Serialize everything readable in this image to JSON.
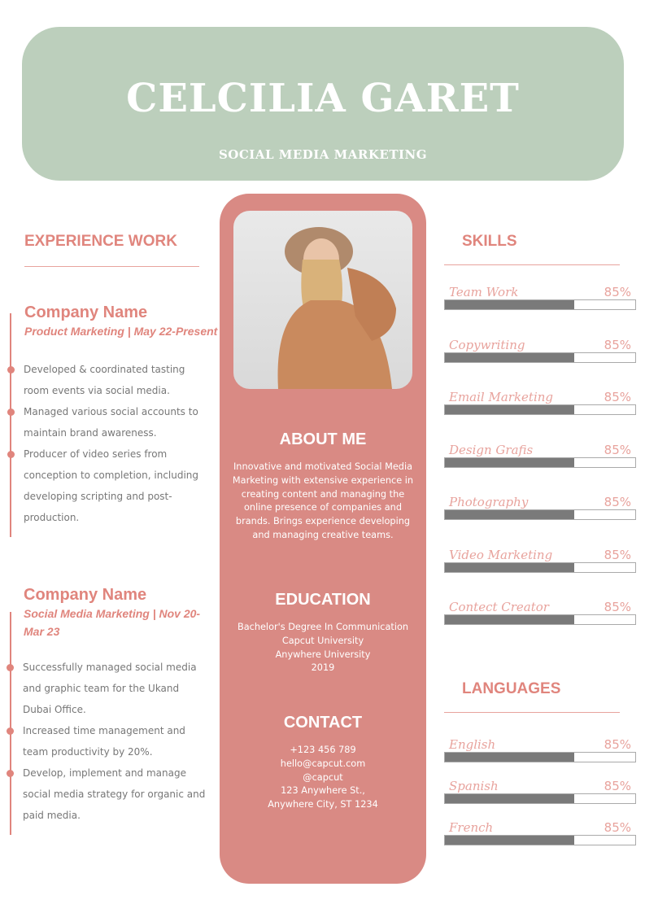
{
  "header": {
    "name": "CELCILIA GARET",
    "role": "SOCIAL MEDIA MARKETING"
  },
  "colors": {
    "header_bg": "#bccfbc",
    "accent": "#e0857d",
    "center_bg": "#d98a84",
    "bar_fill": "#7a7a7a"
  },
  "experience": {
    "title": "EXPERIENCE WORK",
    "jobs": [
      {
        "company": "Company Name",
        "title": "Product Marketing | May 22-Present",
        "bullets": [
          "Developed & coordinated tasting room events via social media.",
          "Managed various social accounts to maintain brand awareness.",
          "Producer of video series from conception to completion, including developing scripting and post-production."
        ]
      },
      {
        "company": "Company Name",
        "title": "Social Media Marketing | Nov 20-Mar 23",
        "bullets": [
          "Successfully managed social media and graphic team for the Ukand Dubai Office.",
          "Increased time management and team productivity by 20%.",
          "Develop, implement and manage social media strategy for organic and paid media."
        ]
      }
    ]
  },
  "center": {
    "photo": "portrait-photo",
    "about": {
      "title": "ABOUT ME",
      "text": "Innovative and motivated Social Media Marketing with extensive experience in creating content and managing the online presence of companies and brands. Brings experience developing and managing creative teams."
    },
    "education": {
      "title": "EDUCATION",
      "lines": [
        "Bachelor's Degree In Communication",
        "Capcut University",
        "Anywhere University",
        "2019"
      ]
    },
    "contact": {
      "title": "CONTACT",
      "lines": [
        "+123  456 789",
        "hello@capcut.com",
        "@capcut",
        "123 Anywhere St.,",
        "Anywhere City, ST 1234"
      ]
    }
  },
  "skills": {
    "title": "SKILLS",
    "items": [
      {
        "label": "Team Work",
        "value": "85%",
        "fill": 68
      },
      {
        "label": "Copywriting",
        "value": "85%",
        "fill": 68
      },
      {
        "label": "Email Marketing",
        "value": "85%",
        "fill": 68
      },
      {
        "label": "Design Grafis",
        "value": "85%",
        "fill": 68
      },
      {
        "label": "Photography",
        "value": "85%",
        "fill": 68
      },
      {
        "label": "Video Marketing",
        "value": "85%",
        "fill": 68
      },
      {
        "label": "Contect Creator",
        "value": "85%",
        "fill": 68
      }
    ]
  },
  "languages": {
    "title": "LANGUAGES",
    "items": [
      {
        "label": "English",
        "value": "85%",
        "fill": 68
      },
      {
        "label": "Spanish",
        "value": "85%",
        "fill": 68
      },
      {
        "label": "French",
        "value": "85%",
        "fill": 68
      }
    ]
  }
}
